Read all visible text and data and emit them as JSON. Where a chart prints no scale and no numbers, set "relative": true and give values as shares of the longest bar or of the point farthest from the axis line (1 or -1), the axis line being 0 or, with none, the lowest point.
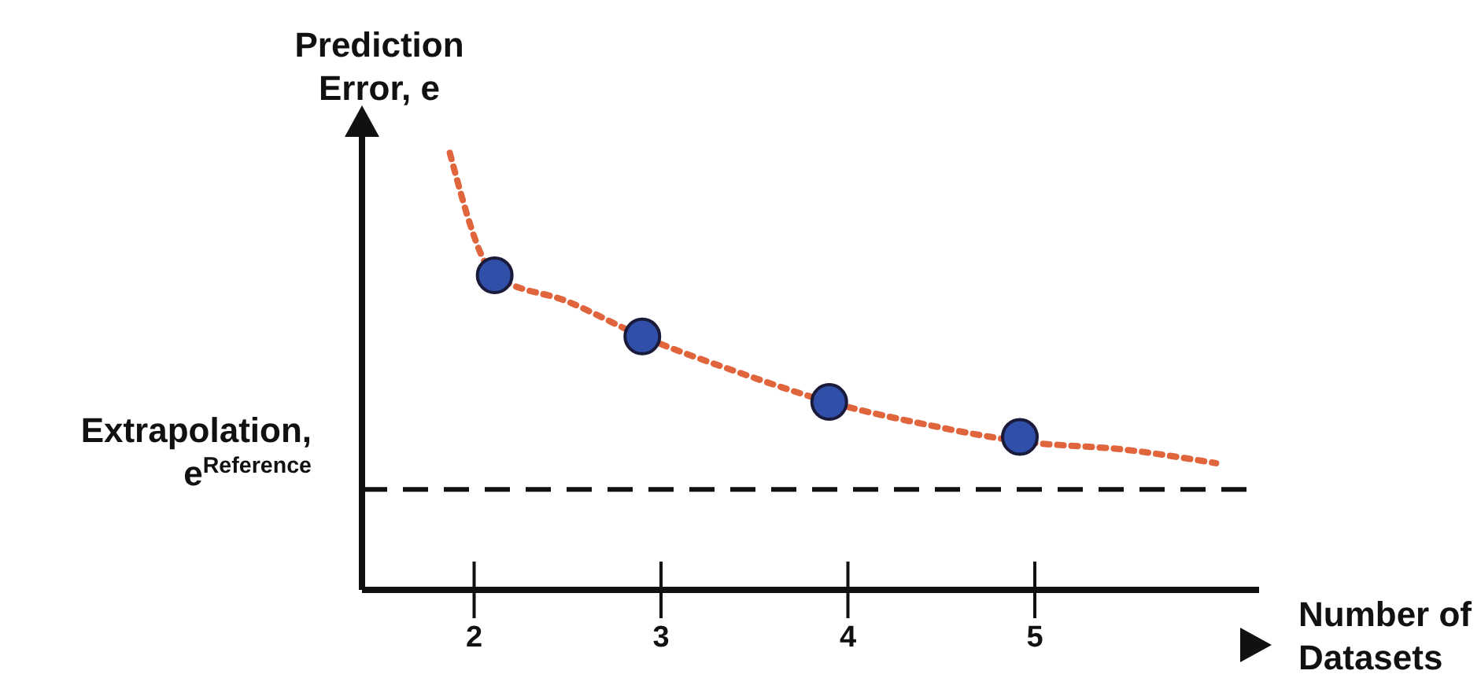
{
  "chart_data": {
    "type": "scatter",
    "relative": true,
    "xlabel": "Number of Datasets",
    "ylabel": "Prediction Error, e",
    "xlim": [
      1.4,
      6.2
    ],
    "xticks": [
      2,
      3,
      4,
      5
    ],
    "marker": "circle",
    "series": [
      {
        "color": "#2f4fa8",
        "x": [
          2.11,
          2.9,
          3.9,
          4.92
        ],
        "values": [
          0.72,
          0.58,
          0.43,
          0.35
        ]
      },
      {
        "type": "line",
        "color": "#e0643c",
        "line_style": "dotted",
        "marker": "none",
        "x": [
          1.87,
          2.11,
          2.5,
          2.9,
          3.4,
          3.9,
          4.4,
          4.92,
          5.5,
          5.97
        ],
        "values": [
          1.0,
          0.72,
          0.66,
          0.58,
          0.5,
          0.43,
          0.38,
          0.34,
          0.32,
          0.29
        ]
      }
    ],
    "ref_lines": [
      {
        "axis": "y",
        "value": 0.23,
        "label": "Extrapolation, e$^{Reference}$",
        "color": "#111111",
        "line_style": "dashed"
      }
    ]
  }
}
